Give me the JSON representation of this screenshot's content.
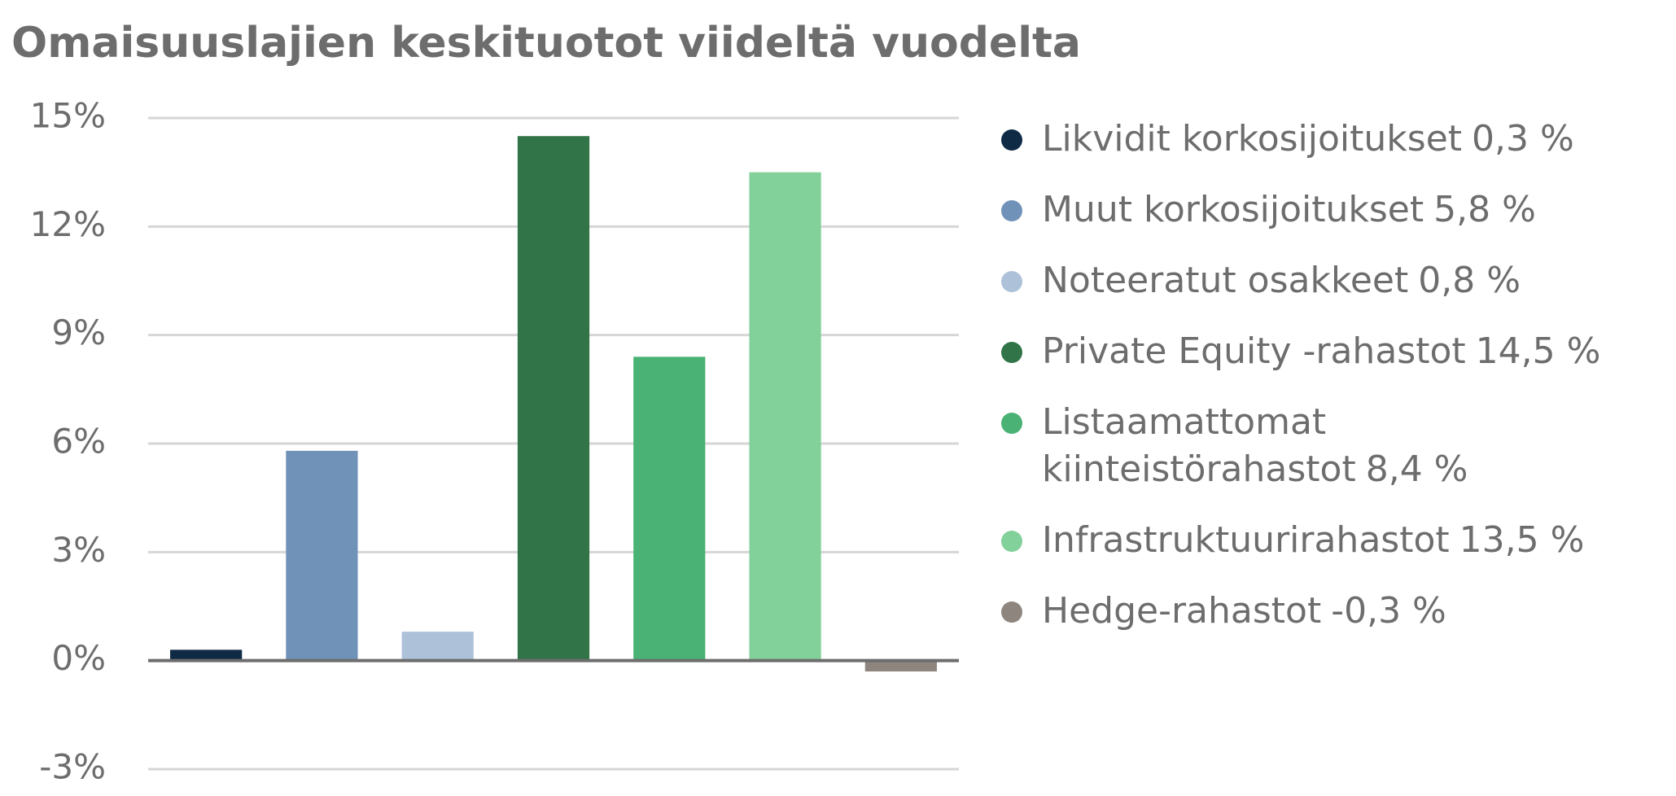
{
  "chart_data": {
    "type": "bar",
    "title": "Omaisuuslajien keskituotot viideltä vuodelta",
    "categories": [
      "Likvidit korkosijoitukset",
      "Muut korkosijoitukset",
      "Noteeratut osakkeet",
      "Private Equity -rahastot",
      "Listaamattomat kiinteistörahastot",
      "Infrastruktuurirahastot",
      "Hedge-rahastot"
    ],
    "values": [
      0.3,
      5.8,
      0.8,
      14.5,
      8.4,
      13.5,
      -0.3
    ],
    "value_labels": [
      "0,3 %",
      "5,8 %",
      "0,8 %",
      "14,5 %",
      "8,4 %",
      "13,5 %",
      "-0,3 %"
    ],
    "colors": [
      "#0f2a45",
      "#7192b8",
      "#adc1d9",
      "#317447",
      "#4ab275",
      "#82d09a",
      "#8e857f"
    ],
    "ylim": [
      -3,
      15
    ],
    "yticks": [
      {
        "value": -3,
        "label": "-3%"
      },
      {
        "value": 0,
        "label": "0%"
      },
      {
        "value": 3,
        "label": "3%"
      },
      {
        "value": 6,
        "label": "6%"
      },
      {
        "value": 9,
        "label": "9%"
      },
      {
        "value": 12,
        "label": "12%"
      },
      {
        "value": 15,
        "label": "15%"
      }
    ],
    "grid": true,
    "legend": "right"
  }
}
